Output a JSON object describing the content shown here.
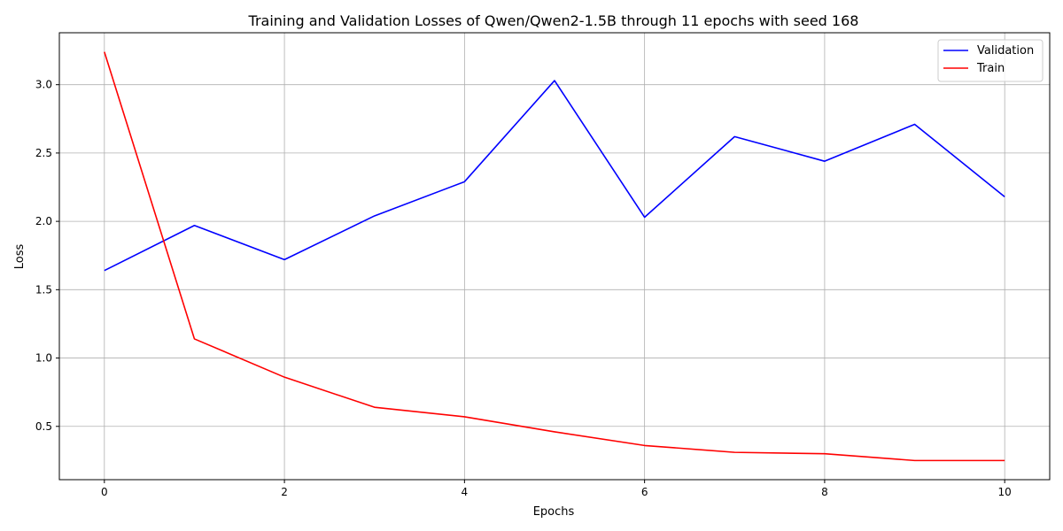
{
  "chart_data": {
    "type": "line",
    "title": "Training and Validation Losses of Qwen/Qwen2-1.5B through 11 epochs with seed 168",
    "xlabel": "Epochs",
    "ylabel": "Loss",
    "x": [
      0,
      1,
      2,
      3,
      4,
      5,
      6,
      7,
      8,
      9,
      10
    ],
    "xlim": [
      -0.5,
      10.5
    ],
    "ylim": [
      0.11,
      3.38
    ],
    "xticks": [
      0,
      2,
      4,
      6,
      8,
      10
    ],
    "yticks": [
      0.5,
      1.0,
      1.5,
      2.0,
      2.5,
      3.0
    ],
    "xtick_labels": [
      "0",
      "2",
      "4",
      "6",
      "8",
      "10"
    ],
    "ytick_labels": [
      "0.5",
      "1.0",
      "1.5",
      "2.0",
      "2.5",
      "3.0"
    ],
    "grid": true,
    "legend_position": "top-right",
    "series": [
      {
        "name": "Validation",
        "color": "#0000ff",
        "values": [
          1.64,
          1.97,
          1.72,
          2.04,
          2.29,
          3.03,
          2.03,
          2.62,
          2.44,
          2.71,
          2.18
        ]
      },
      {
        "name": "Train",
        "color": "#ff0000",
        "values": [
          3.24,
          1.14,
          0.86,
          0.64,
          0.57,
          0.46,
          0.36,
          0.31,
          0.3,
          0.25,
          0.25
        ]
      }
    ]
  }
}
